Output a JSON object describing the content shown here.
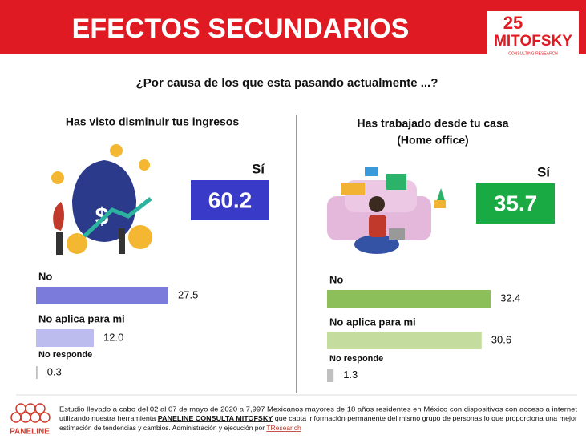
{
  "header": {
    "title": "EFECTOS SECUNDARIOS",
    "logo_number": "25",
    "logo_name": "MITOFSKY",
    "logo_tagline": "CONSULTING RESEARCH"
  },
  "question": "¿Por causa de los que esta pasando actualmente ...?",
  "chart_data": [
    {
      "type": "bar",
      "title": "Has visto disminuir tus ingresos",
      "highlight": {
        "label": "Sí",
        "value": 60.2,
        "color": "#3a3ac8"
      },
      "categories": [
        "No",
        "No aplica para mi",
        "No responde"
      ],
      "values": [
        27.5,
        12.0,
        0.3
      ],
      "value_labels": [
        "27.5",
        "12.0",
        "0.3"
      ],
      "colors": [
        "#7b7bdc",
        "#bcbcee",
        "#c0c0c0"
      ]
    },
    {
      "type": "bar",
      "title": "Has trabajado desde tu casa",
      "subtitle": "(Home office)",
      "highlight": {
        "label": "Sí",
        "value": 35.7,
        "color": "#1aaa44"
      },
      "categories": [
        "No",
        "No aplica para mi",
        "No responde"
      ],
      "values": [
        32.4,
        30.6,
        1.3
      ],
      "value_labels": [
        "32.4",
        "30.6",
        "1.3"
      ],
      "colors": [
        "#8cbf5a",
        "#c4dd9e",
        "#c0c0c0"
      ]
    }
  ],
  "footer": {
    "brand": "PANELINE",
    "line1": "Estudio llevado a cabo del 02 al 07 de mayo de 2020 a 7,997 Mexicanos mayores de 18 años residentes en México con dispositivos con acceso a internet",
    "line2_a": "utilizando nuestra herramienta",
    "line2_bold": "PANELINE CONSULTA MITOFSKY",
    "line2_b": "que capta información permanente del mismo grupo de personas lo que proporciona una mejor",
    "line3": "estimación de tendencias y cambios. Administración y ejecución por",
    "link": "TResear.ch"
  }
}
